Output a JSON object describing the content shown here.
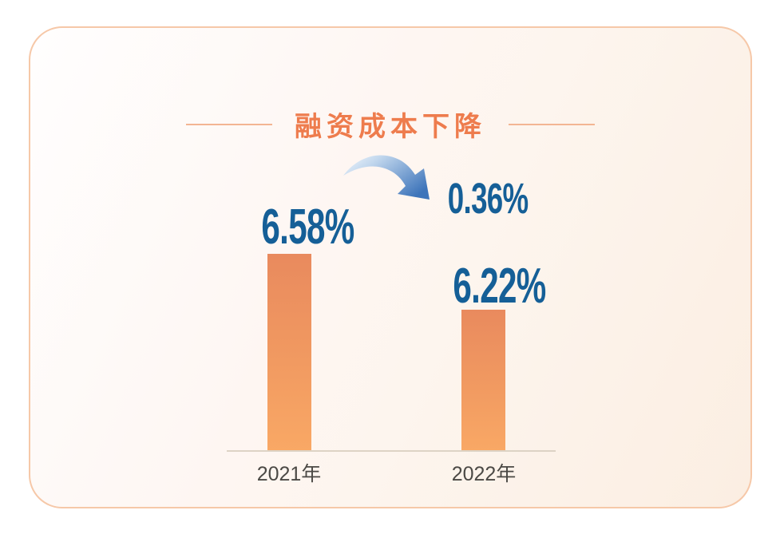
{
  "card": {
    "title": "融资成本下降",
    "accent_color": "#ee7c4d",
    "number_color": "#155f97",
    "border_color": "#f6c8a8"
  },
  "chart_data": {
    "type": "bar",
    "title": "融资成本下降",
    "categories": [
      "2021年",
      "2022年"
    ],
    "values": [
      6.58,
      6.22
    ],
    "value_labels": [
      "6.58%",
      "6.22%"
    ],
    "unit": "%",
    "delta": 0.36,
    "delta_label": "0.36%",
    "annotation": "blue curved arrow from 2021 value down toward 2022 value indicating a decrease of 0.36%",
    "xlabel": "",
    "ylabel": "",
    "ylim": [
      5.31,
      7.0
    ],
    "grid": false,
    "legend": false,
    "bar_gradient": [
      "#e98a5e",
      "#f9a865"
    ],
    "baseline_color": "#ddd3c5"
  }
}
